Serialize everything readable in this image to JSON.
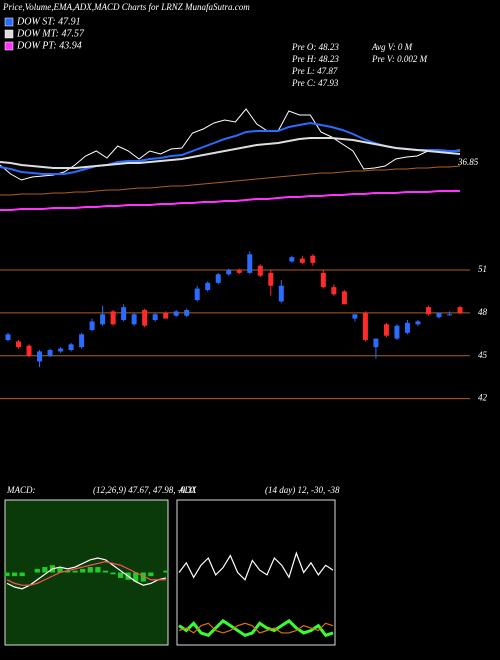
{
  "header": {
    "title": "Price,Volume,EMA,ADX,MACD Charts for LRNZ MunafaSutra.com",
    "info": [
      "Pre  O: 48.23",
      "Pre  H: 48.23",
      "Pre  L: 47.87",
      "Pre  C: 47.93",
      "Avg  V: 0  M",
      "Pre  V: 0.002  M"
    ]
  },
  "chart_data": [
    {
      "type": "line",
      "ylim": [
        41,
        57
      ],
      "annotation": "36.85",
      "series": [
        {
          "color": "#ffffff",
          "values": [
            46.5,
            45.6,
            45.0,
            45.3,
            45.4,
            45.5,
            45.8,
            46.5,
            47.4,
            47.9,
            47.2,
            48.4,
            47.9,
            47.1,
            47.9,
            47.6,
            48.1,
            48.2,
            49.7,
            50.1,
            50.7,
            51.0,
            50.8,
            52.1,
            50.6,
            49.9,
            49.9,
            51.9,
            51.5,
            51.5,
            49.8,
            49.3,
            48.6,
            47.9,
            46.1,
            46.2,
            46.4,
            47.1,
            47.3,
            47.4,
            47.9,
            48.0,
            47.9,
            48.0
          ]
        },
        {
          "color": "#b06020",
          "values": [
            43.5,
            43.5,
            43.6,
            43.6,
            43.6,
            43.7,
            43.7,
            43.8,
            43.8,
            43.9,
            44.0,
            44.0,
            44.1,
            44.2,
            44.2,
            44.3,
            44.4,
            44.4,
            44.5,
            44.6,
            44.7,
            44.8,
            44.9,
            45.0,
            45.1,
            45.2,
            45.3,
            45.4,
            45.5,
            45.6,
            45.7,
            45.7,
            45.8,
            45.9,
            45.9,
            46.0,
            46.0,
            46.1,
            46.1,
            46.2,
            46.2,
            46.3,
            46.3,
            46.4
          ]
        },
        {
          "name": "DOW ST: 47.91",
          "color": "#2a6cff",
          "values": [
            46.3,
            46.1,
            45.8,
            45.7,
            45.6,
            45.6,
            45.6,
            45.8,
            46.1,
            46.4,
            46.5,
            46.8,
            46.9,
            46.9,
            47.1,
            47.2,
            47.4,
            47.5,
            47.9,
            48.3,
            48.7,
            49.1,
            49.4,
            49.8,
            49.9,
            49.9,
            49.9,
            50.3,
            50.5,
            50.7,
            50.5,
            50.3,
            50.0,
            49.6,
            49.1,
            48.7,
            48.4,
            48.2,
            48.1,
            48.0,
            48.0,
            48.0,
            47.9,
            47.9
          ]
        },
        {
          "name": "DOW MT: 47.57",
          "color": "#dddddd",
          "values": [
            46.8,
            46.7,
            46.5,
            46.4,
            46.3,
            46.2,
            46.2,
            46.2,
            46.3,
            46.4,
            46.5,
            46.6,
            46.7,
            46.7,
            46.8,
            46.9,
            47.0,
            47.1,
            47.3,
            47.5,
            47.7,
            47.9,
            48.1,
            48.3,
            48.5,
            48.6,
            48.7,
            48.9,
            49.1,
            49.2,
            49.2,
            49.2,
            49.1,
            49.0,
            48.8,
            48.6,
            48.4,
            48.2,
            48.1,
            48.0,
            47.9,
            47.8,
            47.7,
            47.6
          ]
        },
        {
          "name": "DOW PT: 43.94",
          "color": "#ff33ff",
          "values": [
            42.0,
            42.0,
            42.1,
            42.1,
            42.1,
            42.2,
            42.2,
            42.2,
            42.3,
            42.3,
            42.4,
            42.4,
            42.5,
            42.5,
            42.5,
            42.6,
            42.6,
            42.7,
            42.7,
            42.8,
            42.8,
            42.9,
            42.9,
            43.0,
            43.1,
            43.1,
            43.2,
            43.3,
            43.3,
            43.4,
            43.4,
            43.5,
            43.5,
            43.6,
            43.6,
            43.7,
            43.7,
            43.7,
            43.8,
            43.8,
            43.8,
            43.9,
            43.9,
            43.9
          ]
        }
      ]
    },
    {
      "type": "candlestick",
      "ylim": [
        39.1,
        53.1
      ],
      "yticks": [
        42,
        45,
        48,
        51
      ],
      "up_color": "#2a6cff",
      "down_color": "#ff2a2a",
      "grid_color": "#b06020",
      "open": [
        46.1,
        46.0,
        45.7,
        44.6,
        45.0,
        45.3,
        45.4,
        45.6,
        46.8,
        47.2,
        48.1,
        47.5,
        47.2,
        48.2,
        47.5,
        48.0,
        47.8,
        47.8,
        48.9,
        49.6,
        50.1,
        50.7,
        51.0,
        50.8,
        51.3,
        50.8,
        48.8,
        51.6,
        51.8,
        52.0,
        50.8,
        49.8,
        49.5,
        47.6,
        48.0,
        45.6,
        47.2,
        46.2,
        46.6,
        47.2,
        48.4,
        47.7,
        47.9,
        48.4
      ],
      "high": [
        46.6,
        46.1,
        45.8,
        45.4,
        45.5,
        45.6,
        45.9,
        46.6,
        47.6,
        48.5,
        48.2,
        48.6,
        48.0,
        48.3,
        48.0,
        48.1,
        48.2,
        48.3,
        49.9,
        50.2,
        50.8,
        51.1,
        51.1,
        52.3,
        51.4,
        51.0,
        50.3,
        52.0,
        52.0,
        52.1,
        51.0,
        50.0,
        49.6,
        47.9,
        48.1,
        46.2,
        47.3,
        47.2,
        47.5,
        47.5,
        48.5,
        48.0,
        48.1,
        48.5
      ],
      "low": [
        46.0,
        45.5,
        44.9,
        44.2,
        44.9,
        45.2,
        45.3,
        45.5,
        46.7,
        47.1,
        47.1,
        47.4,
        47.1,
        47.0,
        47.4,
        47.6,
        47.7,
        47.7,
        48.8,
        49.5,
        50.0,
        50.6,
        50.7,
        50.7,
        50.5,
        49.2,
        48.7,
        51.5,
        51.4,
        51.3,
        49.7,
        49.2,
        48.6,
        47.4,
        46.0,
        44.8,
        46.3,
        46.1,
        46.5,
        47.1,
        47.8,
        47.6,
        47.8,
        47.9
      ],
      "close": [
        46.5,
        45.6,
        45.0,
        45.3,
        45.4,
        45.5,
        45.8,
        46.5,
        47.4,
        47.9,
        47.2,
        48.4,
        47.9,
        47.1,
        47.9,
        47.6,
        48.1,
        48.2,
        49.7,
        50.1,
        50.7,
        51.0,
        50.8,
        52.1,
        50.6,
        49.9,
        49.9,
        51.9,
        51.5,
        51.5,
        49.8,
        49.3,
        48.6,
        47.9,
        46.1,
        46.2,
        46.4,
        47.1,
        47.3,
        47.4,
        47.9,
        48.0,
        47.9,
        48.0
      ]
    },
    {
      "type": "macd",
      "title": "MACD:",
      "subtitle": "(12,26,9) 47.67, 47.98, -0.31",
      "ylim": [
        -4,
        4
      ],
      "background": "#0a3a0a",
      "series": [
        {
          "color": "#ffffff",
          "values": [
            -0.6,
            -0.8,
            -0.9,
            -0.7,
            -0.4,
            -0.1,
            0.2,
            0.3,
            0.2,
            0.3,
            0.5,
            0.7,
            0.8,
            0.7,
            0.4,
            0.1,
            -0.2,
            -0.5,
            -0.7,
            -0.6,
            -0.4,
            -0.3
          ]
        },
        {
          "color": "#ff5050",
          "values": [
            -0.4,
            -0.6,
            -0.7,
            -0.7,
            -0.6,
            -0.4,
            -0.2,
            0.0,
            0.1,
            0.2,
            0.3,
            0.4,
            0.5,
            0.6,
            0.5,
            0.4,
            0.2,
            0.0,
            -0.2,
            -0.4,
            -0.4,
            -0.4
          ]
        }
      ],
      "hist": {
        "color": "#22cc22",
        "values": [
          -0.2,
          -0.2,
          -0.2,
          0,
          0.2,
          0.3,
          0.4,
          0.3,
          0.1,
          0.1,
          0.2,
          0.3,
          0.3,
          0.1,
          -0.1,
          -0.3,
          -0.4,
          -0.5,
          -0.5,
          -0.2,
          0,
          0.1
        ]
      }
    },
    {
      "type": "adx",
      "title": "ADX",
      "subtitle": "(14 day) 12, -30, -38",
      "ylim": [
        0,
        60
      ],
      "background": "#000000",
      "series": [
        {
          "color": "#ffffff",
          "values": [
            30,
            34,
            28,
            33,
            36,
            29,
            32,
            37,
            30,
            27,
            35,
            31,
            29,
            36,
            33,
            28,
            38,
            30,
            34,
            29,
            33,
            31
          ]
        },
        {
          "color": "#33ff33",
          "values": [
            8,
            6,
            9,
            5,
            4,
            7,
            10,
            8,
            6,
            4,
            5,
            9,
            7,
            6,
            8,
            10,
            7,
            5,
            6,
            8,
            4,
            5
          ]
        },
        {
          "color": "#e07010",
          "values": [
            6,
            7,
            5,
            8,
            9,
            6,
            5,
            6,
            8,
            9,
            8,
            5,
            6,
            7,
            5,
            5,
            6,
            8,
            7,
            6,
            9,
            8
          ]
        }
      ]
    }
  ]
}
